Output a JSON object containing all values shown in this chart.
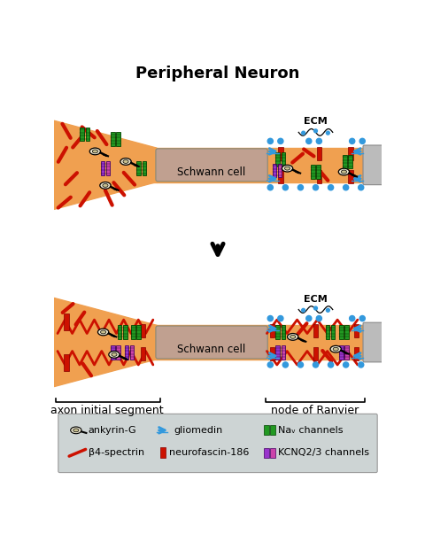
{
  "title": "Peripheral Neuron",
  "title_fontsize": 13,
  "title_fontweight": "bold",
  "background_color": "#ffffff",
  "axon_color": "#F0A050",
  "schwann_color": "#C0A090",
  "legend_bg": "#CDD4D4",
  "nav_color": "#229922",
  "kcnq_purple": "#9933CC",
  "kcnq_pink": "#CC44AA",
  "neurofascin_color": "#CC1100",
  "spectrin_color": "#CC1100",
  "gliomedin_color": "#3399DD",
  "ankyrin_face": "#EEE8D0",
  "ankyrin_inner": "#C8C090",
  "ecm_label": "ECM",
  "schwann_label": "Schwann cell",
  "ais_label": "axon initial segment",
  "node_label": "node of Ranvier"
}
